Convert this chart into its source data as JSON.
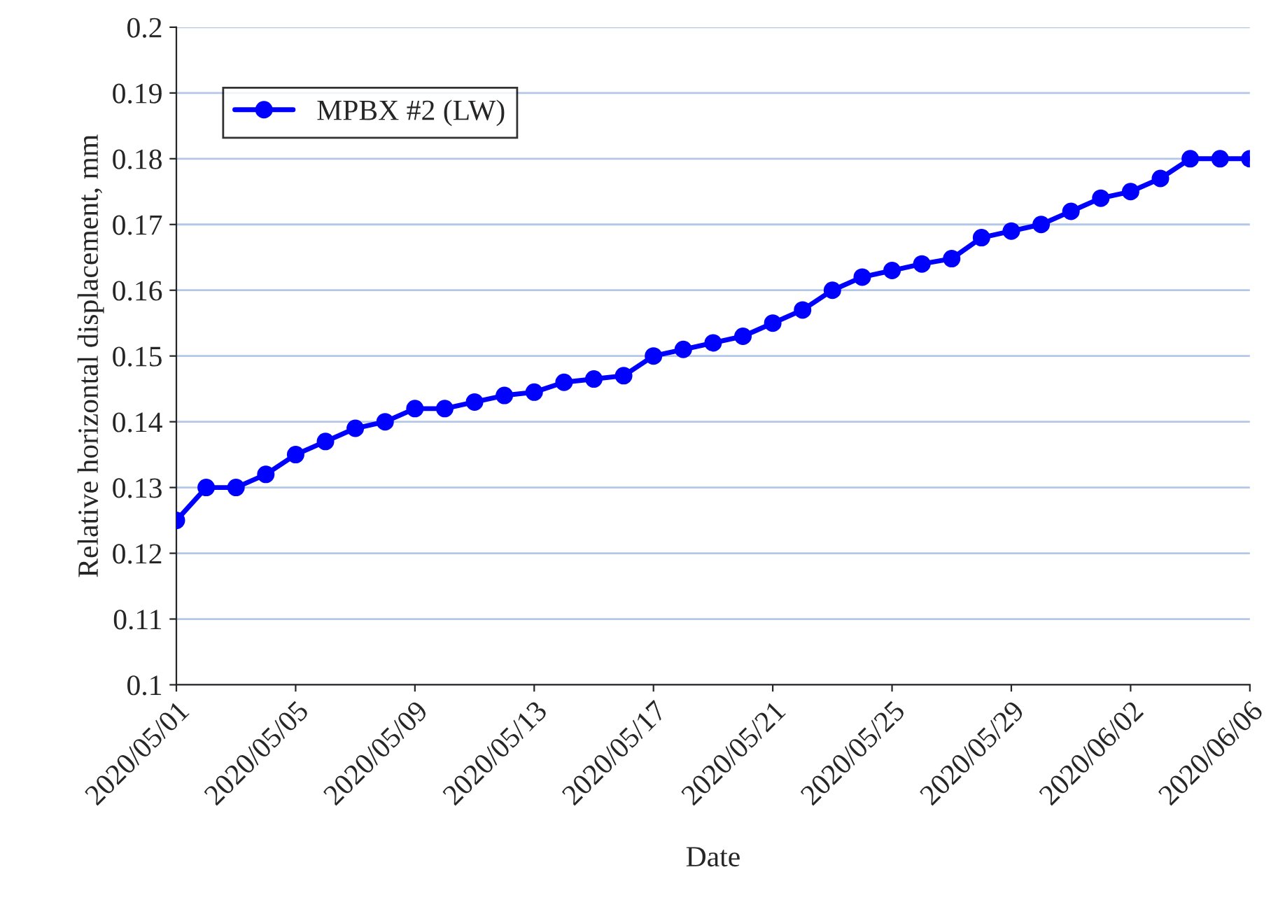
{
  "chart_data": {
    "type": "line",
    "xlabel": "Date",
    "ylabel": "Relative horizontal displacement, mm",
    "x": [
      "2020-05-01",
      "2020-05-02",
      "2020-05-03",
      "2020-05-04",
      "2020-05-05",
      "2020-05-06",
      "2020-05-07",
      "2020-05-08",
      "2020-05-09",
      "2020-05-10",
      "2020-05-11",
      "2020-05-12",
      "2020-05-13",
      "2020-05-14",
      "2020-05-15",
      "2020-05-16",
      "2020-05-17",
      "2020-05-18",
      "2020-05-19",
      "2020-05-20",
      "2020-05-21",
      "2020-05-22",
      "2020-05-23",
      "2020-05-24",
      "2020-05-25",
      "2020-05-26",
      "2020-05-27",
      "2020-05-28",
      "2020-05-29",
      "2020-05-30",
      "2020-05-31",
      "2020-06-01",
      "2020-06-02",
      "2020-06-03",
      "2020-06-04",
      "2020-06-05",
      "2020-06-06"
    ],
    "series": [
      {
        "name": "MPBX #2 (LW)",
        "color": "#0000ff",
        "values": [
          0.125,
          0.13,
          0.13,
          0.132,
          0.135,
          0.137,
          0.139,
          0.14,
          0.142,
          0.142,
          0.143,
          0.144,
          0.1445,
          0.146,
          0.1465,
          0.147,
          0.15,
          0.151,
          0.152,
          0.153,
          0.155,
          0.157,
          0.16,
          0.162,
          0.163,
          0.164,
          0.1648,
          0.168,
          0.169,
          0.17,
          0.172,
          0.174,
          0.175,
          0.177,
          0.18,
          0.18,
          0.18
        ]
      }
    ],
    "xlim": [
      "2020-05-01",
      "2020-06-06"
    ],
    "xticks": [
      {
        "value": "2020-05-01",
        "label": "2020/05/01"
      },
      {
        "value": "2020-05-05",
        "label": "2020/05/05"
      },
      {
        "value": "2020-05-09",
        "label": "2020/05/09"
      },
      {
        "value": "2020-05-13",
        "label": "2020/05/13"
      },
      {
        "value": "2020-05-17",
        "label": "2020/05/17"
      },
      {
        "value": "2020-05-21",
        "label": "2020/05/21"
      },
      {
        "value": "2020-05-25",
        "label": "2020/05/25"
      },
      {
        "value": "2020-05-29",
        "label": "2020/05/29"
      },
      {
        "value": "2020-06-02",
        "label": "2020/06/02"
      },
      {
        "value": "2020-06-06",
        "label": "2020/06/06"
      }
    ],
    "ylim": [
      0.1,
      0.2
    ],
    "yticks": [
      0.1,
      0.11,
      0.12,
      0.13,
      0.14,
      0.15,
      0.16,
      0.17,
      0.18,
      0.19,
      0.2
    ],
    "grid": "y",
    "legend": "top left",
    "marker": "circle",
    "line_style": "solid"
  }
}
